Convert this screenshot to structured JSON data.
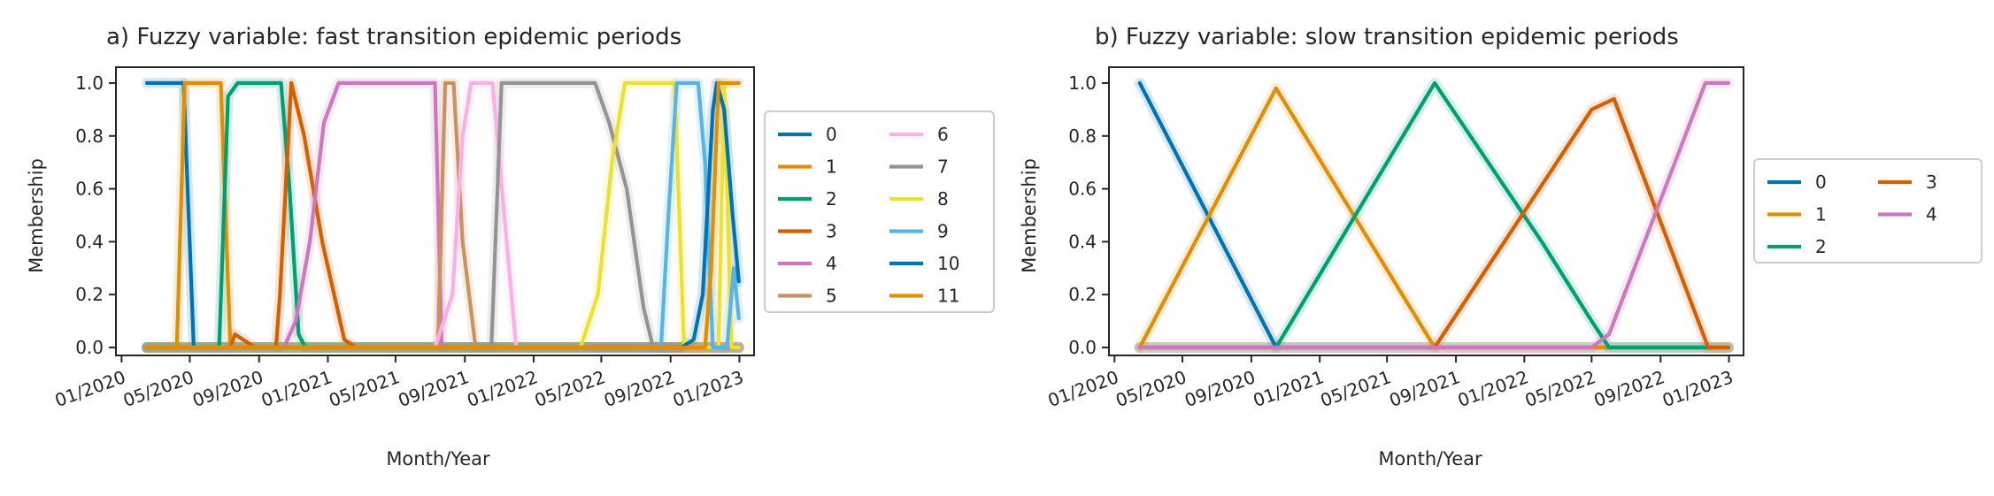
{
  "chart_data": [
    {
      "type": "line",
      "title": "a) Fuzzy variable: fast transition epidemic periods",
      "xlabel": "Month/Year",
      "ylabel": "Membership",
      "ylim": [
        -0.03,
        1.06
      ],
      "grid": false,
      "legend_placement": "right, outside",
      "xticks": [
        {
          "date": "2020-01-01",
          "label": "01/2020"
        },
        {
          "date": "2020-05-01",
          "label": "05/2020"
        },
        {
          "date": "2020-09-01",
          "label": "09/2020"
        },
        {
          "date": "2021-01-01",
          "label": "01/2021"
        },
        {
          "date": "2021-05-01",
          "label": "05/2021"
        },
        {
          "date": "2021-09-01",
          "label": "09/2021"
        },
        {
          "date": "2022-01-01",
          "label": "01/2022"
        },
        {
          "date": "2022-05-01",
          "label": "05/2022"
        },
        {
          "date": "2022-09-01",
          "label": "09/2022"
        },
        {
          "date": "2023-01-01",
          "label": "01/2023"
        }
      ],
      "yticks": [
        {
          "value": 0.0,
          "label": "0.0"
        },
        {
          "value": 0.2,
          "label": "0.2"
        },
        {
          "value": 0.4,
          "label": "0.4"
        },
        {
          "value": 0.6,
          "label": "0.6"
        },
        {
          "value": 0.8,
          "label": "0.8"
        },
        {
          "value": 1.0,
          "label": "1.0"
        }
      ],
      "series": [
        {
          "name": "0",
          "color": "#0173b2",
          "points": [
            [
              "2020-02-15",
              1.0
            ],
            [
              "2020-04-20",
              1.0
            ],
            [
              "2020-05-08",
              0.0
            ],
            [
              "2022-12-31",
              0.0
            ]
          ]
        },
        {
          "name": "1",
          "color": "#de8f05",
          "points": [
            [
              "2020-02-15",
              0.0
            ],
            [
              "2020-04-08",
              0.0
            ],
            [
              "2020-04-22",
              1.0
            ],
            [
              "2020-06-25",
              1.0
            ],
            [
              "2020-07-12",
              0.0
            ],
            [
              "2022-12-31",
              0.0
            ]
          ]
        },
        {
          "name": "2",
          "color": "#029e73",
          "points": [
            [
              "2020-02-15",
              0.0
            ],
            [
              "2020-06-22",
              0.0
            ],
            [
              "2020-07-08",
              0.95
            ],
            [
              "2020-07-25",
              1.0
            ],
            [
              "2020-10-10",
              1.0
            ],
            [
              "2020-10-25",
              0.6
            ],
            [
              "2020-11-10",
              0.05
            ],
            [
              "2020-11-22",
              0.0
            ],
            [
              "2022-12-31",
              0.0
            ]
          ]
        },
        {
          "name": "3",
          "color": "#d55e00",
          "points": [
            [
              "2020-02-15",
              0.0
            ],
            [
              "2020-07-12",
              0.0
            ],
            [
              "2020-07-20",
              0.05
            ],
            [
              "2020-08-25",
              0.0
            ],
            [
              "2020-10-01",
              0.0
            ],
            [
              "2020-10-08",
              0.2
            ],
            [
              "2020-10-28",
              1.0
            ],
            [
              "2020-11-20",
              0.8
            ],
            [
              "2020-12-22",
              0.4
            ],
            [
              "2021-01-30",
              0.03
            ],
            [
              "2021-02-20",
              0.0
            ],
            [
              "2022-12-31",
              0.0
            ]
          ]
        },
        {
          "name": "4",
          "color": "#cc78bc",
          "points": [
            [
              "2020-02-15",
              0.0
            ],
            [
              "2020-10-15",
              0.0
            ],
            [
              "2020-11-05",
              0.1
            ],
            [
              "2020-11-30",
              0.4
            ],
            [
              "2020-12-25",
              0.85
            ],
            [
              "2021-01-20",
              1.0
            ],
            [
              "2021-07-10",
              1.0
            ],
            [
              "2021-07-22",
              0.0
            ],
            [
              "2022-12-31",
              0.0
            ]
          ]
        },
        {
          "name": "5",
          "color": "#ca9161",
          "points": [
            [
              "2020-02-15",
              0.0
            ],
            [
              "2021-07-15",
              0.0
            ],
            [
              "2021-07-28",
              1.0
            ],
            [
              "2021-08-12",
              1.0
            ],
            [
              "2021-08-28",
              0.4
            ],
            [
              "2021-09-20",
              0.0
            ],
            [
              "2022-12-31",
              0.0
            ]
          ]
        },
        {
          "name": "6",
          "color": "#fbafe4",
          "points": [
            [
              "2020-02-15",
              0.0
            ],
            [
              "2021-07-10",
              0.0
            ],
            [
              "2021-08-10",
              0.2
            ],
            [
              "2021-08-28",
              0.8
            ],
            [
              "2021-09-12",
              1.0
            ],
            [
              "2021-10-20",
              1.0
            ],
            [
              "2021-11-10",
              0.5
            ],
            [
              "2021-12-01",
              0.0
            ],
            [
              "2022-12-31",
              0.0
            ]
          ]
        },
        {
          "name": "7",
          "color": "#949494",
          "points": [
            [
              "2020-02-15",
              0.0
            ],
            [
              "2021-10-18",
              0.0
            ],
            [
              "2021-11-05",
              1.0
            ],
            [
              "2022-04-20",
              1.0
            ],
            [
              "2022-05-15",
              0.85
            ],
            [
              "2022-06-15",
              0.6
            ],
            [
              "2022-07-15",
              0.15
            ],
            [
              "2022-08-01",
              0.0
            ],
            [
              "2022-12-31",
              0.0
            ]
          ]
        },
        {
          "name": "8",
          "color": "#ece133",
          "points": [
            [
              "2020-02-15",
              0.0
            ],
            [
              "2022-03-25",
              0.0
            ],
            [
              "2022-04-25",
              0.2
            ],
            [
              "2022-05-20",
              0.7
            ],
            [
              "2022-06-12",
              1.0
            ],
            [
              "2022-09-08",
              1.0
            ],
            [
              "2022-09-25",
              0.0
            ],
            [
              "2022-11-25",
              0.0
            ],
            [
              "2022-12-05",
              1.0
            ],
            [
              "2022-12-18",
              0.0
            ],
            [
              "2022-12-31",
              0.0
            ]
          ]
        },
        {
          "name": "9",
          "color": "#56b4e9",
          "points": [
            [
              "2020-02-15",
              0.0
            ],
            [
              "2022-08-15",
              0.0
            ],
            [
              "2022-08-28",
              0.5
            ],
            [
              "2022-09-12",
              1.0
            ],
            [
              "2022-10-20",
              1.0
            ],
            [
              "2022-11-01",
              0.7
            ],
            [
              "2022-11-15",
              0.0
            ],
            [
              "2022-12-10",
              0.0
            ],
            [
              "2022-12-22",
              0.3
            ],
            [
              "2022-12-31",
              0.11
            ]
          ]
        },
        {
          "name": "10",
          "color": "#0173b2",
          "points": [
            [
              "2020-02-15",
              0.0
            ],
            [
              "2022-09-20",
              0.0
            ],
            [
              "2022-10-12",
              0.03
            ],
            [
              "2022-10-28",
              0.2
            ],
            [
              "2022-11-15",
              0.9
            ],
            [
              "2022-11-22",
              1.0
            ],
            [
              "2022-12-05",
              0.9
            ],
            [
              "2022-12-20",
              0.5
            ],
            [
              "2022-12-31",
              0.25
            ]
          ]
        },
        {
          "name": "11",
          "color": "#de8f05",
          "points": [
            [
              "2020-02-15",
              0.0
            ],
            [
              "2022-11-01",
              0.0
            ],
            [
              "2022-11-12",
              0.3
            ],
            [
              "2022-11-25",
              1.0
            ],
            [
              "2022-12-31",
              1.0
            ]
          ]
        }
      ]
    },
    {
      "type": "line",
      "title": "b) Fuzzy variable: slow transition epidemic periods",
      "xlabel": "Month/Year",
      "ylabel": "Membership",
      "ylim": [
        -0.03,
        1.06
      ],
      "grid": false,
      "legend_placement": "right, outside",
      "xticks": [
        {
          "date": "2020-01-01",
          "label": "01/2020"
        },
        {
          "date": "2020-05-01",
          "label": "05/2020"
        },
        {
          "date": "2020-09-01",
          "label": "09/2020"
        },
        {
          "date": "2021-01-01",
          "label": "01/2021"
        },
        {
          "date": "2021-05-01",
          "label": "05/2021"
        },
        {
          "date": "2021-09-01",
          "label": "09/2021"
        },
        {
          "date": "2022-01-01",
          "label": "01/2022"
        },
        {
          "date": "2022-05-01",
          "label": "05/2022"
        },
        {
          "date": "2022-09-01",
          "label": "09/2022"
        },
        {
          "date": "2023-01-01",
          "label": "01/2023"
        }
      ],
      "yticks": [
        {
          "value": 0.0,
          "label": "0.0"
        },
        {
          "value": 0.2,
          "label": "0.2"
        },
        {
          "value": 0.4,
          "label": "0.4"
        },
        {
          "value": 0.6,
          "label": "0.6"
        },
        {
          "value": 0.8,
          "label": "0.8"
        },
        {
          "value": 1.0,
          "label": "1.0"
        }
      ],
      "series": [
        {
          "name": "0",
          "color": "#0173b2",
          "points": [
            [
              "2020-02-15",
              1.0
            ],
            [
              "2020-10-15",
              0.0
            ],
            [
              "2022-12-31",
              0.0
            ]
          ]
        },
        {
          "name": "1",
          "color": "#de8f05",
          "points": [
            [
              "2020-02-15",
              0.0
            ],
            [
              "2020-10-15",
              0.98
            ],
            [
              "2021-07-25",
              0.0
            ],
            [
              "2022-12-31",
              0.0
            ]
          ]
        },
        {
          "name": "2",
          "color": "#029e73",
          "points": [
            [
              "2020-02-15",
              0.0
            ],
            [
              "2020-10-15",
              0.0
            ],
            [
              "2021-07-25",
              1.0
            ],
            [
              "2022-02-01",
              0.4
            ],
            [
              "2022-05-01",
              0.1
            ],
            [
              "2022-06-01",
              0.0
            ],
            [
              "2022-12-31",
              0.0
            ]
          ]
        },
        {
          "name": "3",
          "color": "#d55e00",
          "points": [
            [
              "2020-02-15",
              0.0
            ],
            [
              "2021-07-25",
              0.0
            ],
            [
              "2022-05-01",
              0.9
            ],
            [
              "2022-06-10",
              0.94
            ],
            [
              "2022-11-25",
              0.0
            ],
            [
              "2022-12-31",
              0.0
            ]
          ]
        },
        {
          "name": "4",
          "color": "#cc78bc",
          "points": [
            [
              "2020-02-15",
              0.0
            ],
            [
              "2022-05-01",
              0.0
            ],
            [
              "2022-06-01",
              0.05
            ],
            [
              "2022-11-20",
              1.0
            ],
            [
              "2022-12-31",
              1.0
            ]
          ]
        }
      ]
    }
  ]
}
